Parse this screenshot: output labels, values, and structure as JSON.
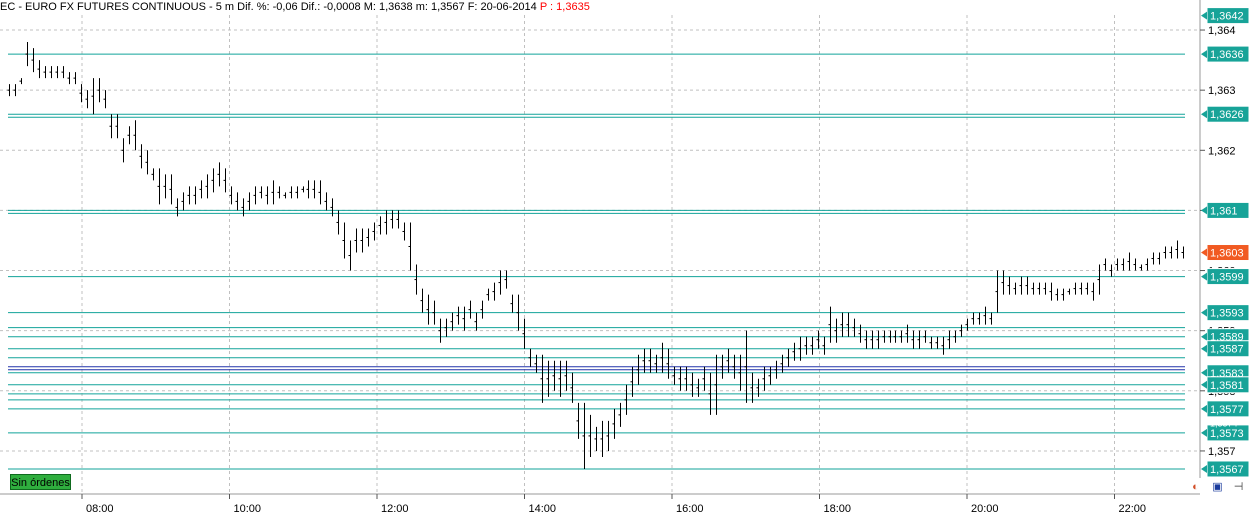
{
  "header": {
    "symbol": "EC - EURO FX FUTURES CONTINUOUS",
    "interval": "5 m",
    "change_pct": "Dif. %: -0,06",
    "change": "Dif.: -0,0008",
    "high": "M: 1,3638",
    "low": "m: 1,3567",
    "date": "F: 20-06-2014",
    "last": "P : 1,3635"
  },
  "orders_button": "Sin órdenes",
  "colors": {
    "level_line": "#12a39a",
    "level_label_bg": "#17a398",
    "current_price_bg": "#f15a22",
    "bar": "#000000",
    "grid": "#c0c0c0",
    "blue_line": "#2233aa",
    "orders_button_bg": "#2fae3e"
  },
  "toolbar_icons": [
    "palette-icon",
    "save-icon",
    "pin-icon"
  ],
  "chart_data": {
    "type": "ohlc-bar",
    "x_ticks": [
      "08:00",
      "10:00",
      "12:00",
      "14:00",
      "16:00",
      "18:00",
      "20:00",
      "22:00"
    ],
    "y_ticks": [
      "1,364",
      "1,363",
      "1,362",
      "1,361",
      "1,360",
      "1,359",
      "1,358",
      "1,357"
    ],
    "ylim": [
      1.35655,
      1.36425
    ],
    "grid": true,
    "levels": [
      {
        "label": "1,3636",
        "value": 1.3636
      },
      {
        "label": "1,3626",
        "value": 1.3626
      },
      {
        "label": "1,361",
        "value": 1.361
      },
      {
        "label": "1,3599",
        "value": 1.3599
      },
      {
        "label": "1,3593",
        "value": 1.3593
      },
      {
        "label": "1,3589",
        "value": 1.3589
      },
      {
        "label": "1,3587",
        "value": 1.3587
      },
      {
        "label": "1,3583",
        "value": 1.3583
      },
      {
        "label": "1,3581",
        "value": 1.3581
      },
      {
        "label": "1,3577",
        "value": 1.3577
      },
      {
        "label": "1,3573",
        "value": 1.3573
      },
      {
        "label": "1,3567",
        "value": 1.3567
      }
    ],
    "extra_levels": [
      1.36255,
      1.36095,
      1.35905,
      1.35855,
      1.35795,
      1.35785
    ],
    "blue_levels": [
      1.35835,
      1.3584
    ],
    "partial_labels": [
      "1,3642",
      "1,3574"
    ],
    "current_price": {
      "label": "1,3603",
      "value": 1.3603
    },
    "bars": [
      [
        1.3631,
        1.3629
      ],
      [
        1.3631,
        1.3629
      ],
      [
        1.3632,
        1.3631
      ],
      [
        1.3638,
        1.3634
      ],
      [
        1.3637,
        1.3633
      ],
      [
        1.3635,
        1.3632
      ],
      [
        1.3634,
        1.3632
      ],
      [
        1.3634,
        1.3632
      ],
      [
        1.3634,
        1.3632
      ],
      [
        1.3634,
        1.3632
      ],
      [
        1.3633,
        1.3631
      ],
      [
        1.3633,
        1.3631
      ],
      [
        1.3631,
        1.3628
      ],
      [
        1.363,
        1.3627
      ],
      [
        1.3632,
        1.3626
      ],
      [
        1.3632,
        1.3628
      ],
      [
        1.363,
        1.3627
      ],
      [
        1.3626,
        1.3622
      ],
      [
        1.3626,
        1.3622
      ],
      [
        1.3622,
        1.3618
      ],
      [
        1.3624,
        1.3621
      ],
      [
        1.3625,
        1.362
      ],
      [
        1.3621,
        1.3617
      ],
      [
        1.362,
        1.3616
      ],
      [
        1.3617,
        1.3615
      ],
      [
        1.3617,
        1.3611
      ],
      [
        1.3616,
        1.3612
      ],
      [
        1.3616,
        1.3611
      ],
      [
        1.3612,
        1.3609
      ],
      [
        1.3613,
        1.361
      ],
      [
        1.3614,
        1.3611
      ],
      [
        1.3614,
        1.3611
      ],
      [
        1.3615,
        1.3612
      ],
      [
        1.3616,
        1.3612
      ],
      [
        1.3617,
        1.3613
      ],
      [
        1.3618,
        1.3614
      ],
      [
        1.3617,
        1.3613
      ],
      [
        1.3614,
        1.3611
      ],
      [
        1.3613,
        1.361
      ],
      [
        1.3612,
        1.3609
      ],
      [
        1.3613,
        1.361
      ],
      [
        1.3614,
        1.3611
      ],
      [
        1.3614,
        1.3612
      ],
      [
        1.3614,
        1.3611
      ],
      [
        1.3615,
        1.3611
      ],
      [
        1.3614,
        1.3612
      ],
      [
        1.3613,
        1.3612
      ],
      [
        1.3614,
        1.3612
      ],
      [
        1.3614,
        1.3612
      ],
      [
        1.3614,
        1.3613
      ],
      [
        1.3615,
        1.3612
      ],
      [
        1.3615,
        1.3612
      ],
      [
        1.3615,
        1.3611
      ],
      [
        1.3613,
        1.361
      ],
      [
        1.3612,
        1.3609
      ],
      [
        1.361,
        1.3606
      ],
      [
        1.3608,
        1.3602
      ],
      [
        1.3605,
        1.36
      ],
      [
        1.3607,
        1.3603
      ],
      [
        1.3607,
        1.3603
      ],
      [
        1.3607,
        1.3604
      ],
      [
        1.3608,
        1.3605
      ],
      [
        1.3609,
        1.3606
      ],
      [
        1.361,
        1.3606
      ],
      [
        1.361,
        1.3607
      ],
      [
        1.361,
        1.3607
      ],
      [
        1.3608,
        1.3605
      ],
      [
        1.3608,
        1.36
      ],
      [
        1.3601,
        1.3596
      ],
      [
        1.3597,
        1.3593
      ],
      [
        1.3596,
        1.3591
      ],
      [
        1.3595,
        1.3591
      ],
      [
        1.3592,
        1.3588
      ],
      [
        1.3592,
        1.3589
      ],
      [
        1.3593,
        1.359
      ],
      [
        1.3594,
        1.3591
      ],
      [
        1.3594,
        1.359
      ],
      [
        1.3595,
        1.3592
      ],
      [
        1.3593,
        1.359
      ],
      [
        1.3595,
        1.3592
      ],
      [
        1.3597,
        1.3595
      ],
      [
        1.3598,
        1.3595
      ],
      [
        1.36,
        1.3596
      ],
      [
        1.36,
        1.3597
      ],
      [
        1.3596,
        1.3593
      ],
      [
        1.3596,
        1.359
      ],
      [
        1.3592,
        1.3587
      ],
      [
        1.3587,
        1.3584
      ],
      [
        1.3586,
        1.3583
      ],
      [
        1.3586,
        1.3578
      ],
      [
        1.3585,
        1.3579
      ],
      [
        1.3585,
        1.358
      ],
      [
        1.3585,
        1.3579
      ],
      [
        1.3585,
        1.358
      ],
      [
        1.3583,
        1.3578
      ],
      [
        1.3578,
        1.3572
      ],
      [
        1.3578,
        1.3567
      ],
      [
        1.3576,
        1.3569
      ],
      [
        1.3574,
        1.357
      ],
      [
        1.3575,
        1.3569
      ],
      [
        1.3575,
        1.357
      ],
      [
        1.3577,
        1.3572
      ],
      [
        1.3578,
        1.3574
      ],
      [
        1.3581,
        1.3576
      ],
      [
        1.3584,
        1.3579
      ],
      [
        1.3586,
        1.3581
      ],
      [
        1.3587,
        1.3583
      ],
      [
        1.3587,
        1.3583
      ],
      [
        1.3586,
        1.3583
      ],
      [
        1.3588,
        1.3583
      ],
      [
        1.3587,
        1.3582
      ],
      [
        1.3584,
        1.3581
      ],
      [
        1.3584,
        1.358
      ],
      [
        1.3584,
        1.358
      ],
      [
        1.3583,
        1.3579
      ],
      [
        1.3582,
        1.3579
      ],
      [
        1.3584,
        1.358
      ],
      [
        1.3583,
        1.3576
      ],
      [
        1.3586,
        1.3576
      ],
      [
        1.3586,
        1.3582
      ],
      [
        1.3587,
        1.3583
      ],
      [
        1.3586,
        1.3582
      ],
      [
        1.3586,
        1.358
      ],
      [
        1.359,
        1.3578
      ],
      [
        1.3583,
        1.3578
      ],
      [
        1.3582,
        1.3579
      ],
      [
        1.3584,
        1.358
      ],
      [
        1.3584,
        1.3581
      ],
      [
        1.3585,
        1.3582
      ],
      [
        1.3586,
        1.3583
      ],
      [
        1.3587,
        1.3584
      ],
      [
        1.3588,
        1.3585
      ],
      [
        1.3589,
        1.3585
      ],
      [
        1.3589,
        1.3586
      ],
      [
        1.3589,
        1.3586
      ],
      [
        1.359,
        1.3587
      ],
      [
        1.3589,
        1.3586
      ],
      [
        1.3594,
        1.3588
      ],
      [
        1.3592,
        1.3588
      ],
      [
        1.3593,
        1.3589
      ],
      [
        1.3593,
        1.3589
      ],
      [
        1.3592,
        1.3589
      ],
      [
        1.3591,
        1.3588
      ],
      [
        1.359,
        1.3587
      ],
      [
        1.359,
        1.3587
      ],
      [
        1.359,
        1.3587
      ],
      [
        1.359,
        1.3588
      ],
      [
        1.359,
        1.3588
      ],
      [
        1.359,
        1.3588
      ],
      [
        1.359,
        1.3588
      ],
      [
        1.3591,
        1.3588
      ],
      [
        1.359,
        1.3587
      ],
      [
        1.359,
        1.3587
      ],
      [
        1.359,
        1.3588
      ],
      [
        1.3589,
        1.3587
      ],
      [
        1.3589,
        1.3587
      ],
      [
        1.3589,
        1.3586
      ],
      [
        1.359,
        1.3587
      ],
      [
        1.359,
        1.3588
      ],
      [
        1.3591,
        1.3589
      ],
      [
        1.3592,
        1.359
      ],
      [
        1.3593,
        1.3591
      ],
      [
        1.3593,
        1.3591
      ],
      [
        1.3594,
        1.3591
      ],
      [
        1.3593,
        1.3591
      ],
      [
        1.36,
        1.3593
      ],
      [
        1.36,
        1.3596
      ],
      [
        1.3599,
        1.3596
      ],
      [
        1.3598,
        1.3596
      ],
      [
        1.3599,
        1.3596
      ],
      [
        1.3599,
        1.3596
      ],
      [
        1.3598,
        1.3596
      ],
      [
        1.3598,
        1.3596
      ],
      [
        1.3598,
        1.3596
      ],
      [
        1.3598,
        1.3595
      ],
      [
        1.3597,
        1.3595
      ],
      [
        1.3597,
        1.3595
      ],
      [
        1.3597,
        1.3596
      ],
      [
        1.3598,
        1.3596
      ],
      [
        1.3598,
        1.3596
      ],
      [
        1.3598,
        1.3596
      ],
      [
        1.3598,
        1.3595
      ],
      [
        1.3601,
        1.3596
      ],
      [
        1.3602,
        1.36
      ],
      [
        1.3601,
        1.3599
      ],
      [
        1.3602,
        1.36
      ],
      [
        1.3602,
        1.36
      ],
      [
        1.3603,
        1.36
      ],
      [
        1.3602,
        1.36
      ],
      [
        1.3601,
        1.36
      ],
      [
        1.3602,
        1.36
      ],
      [
        1.3603,
        1.3601
      ],
      [
        1.3603,
        1.3601
      ],
      [
        1.3604,
        1.3602
      ],
      [
        1.3604,
        1.3602
      ],
      [
        1.3605,
        1.3602
      ],
      [
        1.3604,
        1.3602
      ]
    ]
  }
}
